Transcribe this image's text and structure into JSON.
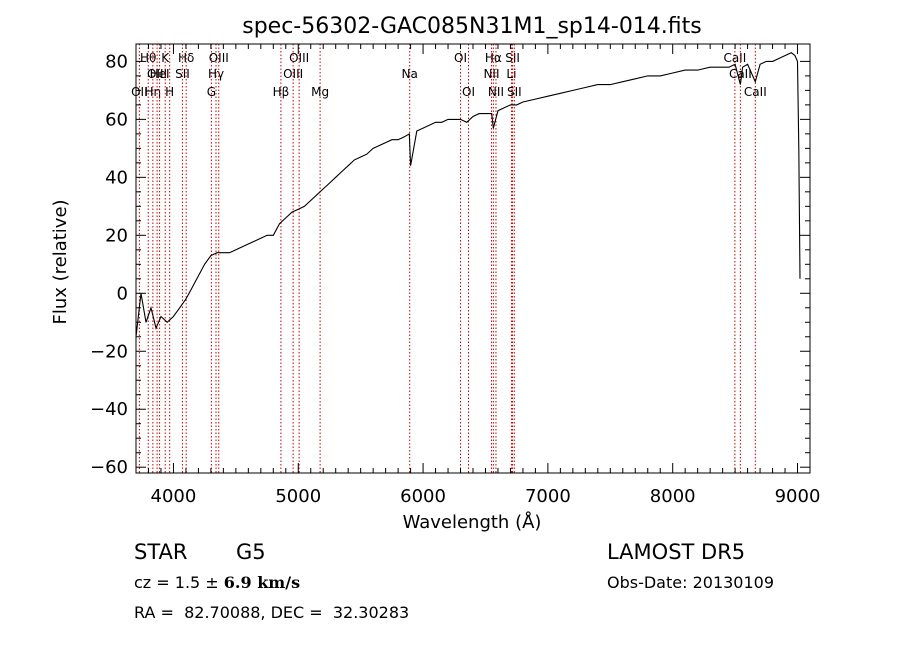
{
  "chart_data": {
    "type": "line",
    "title": "spec-56302-GAC085N31M1_sp14-014.fits",
    "xlabel": "Wavelength (Å)",
    "ylabel": "Flux (relative)",
    "xlim": [
      3700,
      9100
    ],
    "ylim": [
      -62,
      86
    ],
    "xticks": [
      4000,
      5000,
      6000,
      7000,
      8000,
      9000
    ],
    "yticks": [
      -60,
      -40,
      -20,
      0,
      20,
      40,
      60,
      80
    ],
    "grid": false,
    "series": [
      {
        "x": [
          3700,
          3740,
          3780,
          3820,
          3860,
          3900,
          3950,
          4000,
          4050,
          4100,
          4150,
          4200,
          4250,
          4300,
          4350,
          4400,
          4450,
          4500,
          4550,
          4600,
          4650,
          4700,
          4750,
          4800,
          4850,
          4900,
          4950,
          5000,
          5050,
          5100,
          5150,
          5200,
          5250,
          5300,
          5350,
          5400,
          5450,
          5500,
          5550,
          5600,
          5650,
          5700,
          5750,
          5800,
          5850,
          5890,
          5900,
          5950,
          6000,
          6050,
          6100,
          6150,
          6200,
          6250,
          6300,
          6350,
          6400,
          6450,
          6500,
          6550,
          6563,
          6600,
          6650,
          6700,
          6750,
          6800,
          6900,
          7000,
          7100,
          7200,
          7300,
          7400,
          7500,
          7600,
          7700,
          7800,
          7900,
          8000,
          8100,
          8200,
          8300,
          8400,
          8450,
          8500,
          8542,
          8560,
          8600,
          8662,
          8700,
          8750,
          8800,
          8850,
          8900,
          8950,
          8980,
          9000,
          9010,
          9020
        ],
        "y": [
          -15,
          0,
          -10,
          -5,
          -12,
          -8,
          -10,
          -8,
          -5,
          -2,
          2,
          6,
          10,
          13,
          14,
          14,
          14,
          15,
          16,
          17,
          18,
          19,
          20,
          20,
          24,
          26,
          28,
          29,
          30,
          32,
          34,
          36,
          38,
          40,
          42,
          44,
          46,
          47,
          48,
          50,
          51,
          52,
          53,
          53,
          54,
          55,
          44,
          56,
          57,
          58,
          59,
          59,
          60,
          60,
          60,
          59,
          61,
          62,
          62,
          62,
          57,
          63,
          64,
          65,
          65,
          66,
          67,
          68,
          69,
          70,
          71,
          72,
          72,
          73,
          74,
          75,
          75,
          76,
          77,
          77,
          78,
          78,
          78,
          79,
          72,
          78,
          79,
          73,
          79,
          80,
          80,
          81,
          82,
          83,
          82,
          80,
          50,
          5
        ]
      }
    ],
    "lines": [
      {
        "wl": 3727,
        "labels": [
          "OII"
        ],
        "row": 3
      },
      {
        "wl": 3798,
        "labels": [
          "Hθ"
        ],
        "row": 1
      },
      {
        "wl": 3835,
        "labels": [
          "Hη"
        ],
        "row": 3
      },
      {
        "wl": 3869,
        "labels": [
          "OIII"
        ],
        "row": 2
      },
      {
        "wl": 3889,
        "labels": [
          "HeI"
        ],
        "row": 2
      },
      {
        "wl": 3934,
        "labels": [
          "K"
        ],
        "row": 1
      },
      {
        "wl": 3970,
        "labels": [
          "H"
        ],
        "row": 3
      },
      {
        "wl": 4072,
        "labels": [
          "SII"
        ],
        "row": 2
      },
      {
        "wl": 4102,
        "labels": [
          "Hδ"
        ],
        "row": 1
      },
      {
        "wl": 4304,
        "labels": [
          "G"
        ],
        "row": 3
      },
      {
        "wl": 4341,
        "labels": [
          "Hγ"
        ],
        "row": 2
      },
      {
        "wl": 4363,
        "labels": [
          "OIII"
        ],
        "row": 1
      },
      {
        "wl": 4861,
        "labels": [
          "Hβ"
        ],
        "row": 3
      },
      {
        "wl": 4959,
        "labels": [
          "OIII"
        ],
        "row": 2
      },
      {
        "wl": 5007,
        "labels": [
          "OIII"
        ],
        "row": 1
      },
      {
        "wl": 5175,
        "labels": [
          "Mg"
        ],
        "row": 3
      },
      {
        "wl": 5893,
        "labels": [
          "Na"
        ],
        "row": 2
      },
      {
        "wl": 6300,
        "labels": [
          "OI"
        ],
        "row": 1
      },
      {
        "wl": 6364,
        "labels": [
          "OI"
        ],
        "row": 3
      },
      {
        "wl": 6548,
        "labels": [
          "NII"
        ],
        "row": 2
      },
      {
        "wl": 6563,
        "labels": [
          "Hα"
        ],
        "row": 1
      },
      {
        "wl": 6584,
        "labels": [
          "NII"
        ],
        "row": 3
      },
      {
        "wl": 6708,
        "labels": [
          "Li"
        ],
        "row": 2
      },
      {
        "wl": 6717,
        "labels": [
          "SII"
        ],
        "row": 1
      },
      {
        "wl": 6731,
        "labels": [
          "SII"
        ],
        "row": 3
      },
      {
        "wl": 8498,
        "labels": [
          "CaII"
        ],
        "row": 1
      },
      {
        "wl": 8542,
        "labels": [
          "CaII"
        ],
        "row": 2
      },
      {
        "wl": 8662,
        "labels": [
          "CaII"
        ],
        "row": 3
      }
    ],
    "line_color": "#cc0000"
  },
  "info": {
    "object_class": "STAR",
    "subclass": "G5",
    "survey": "LAMOST DR5",
    "cz_prefix": "cz = 1.5 ± ",
    "cz_err": "6.9",
    "cz_unit": " km/s",
    "obs_date": "Obs-Date: 20130109",
    "coords": "RA =  82.70088, DEC =  32.30283"
  }
}
